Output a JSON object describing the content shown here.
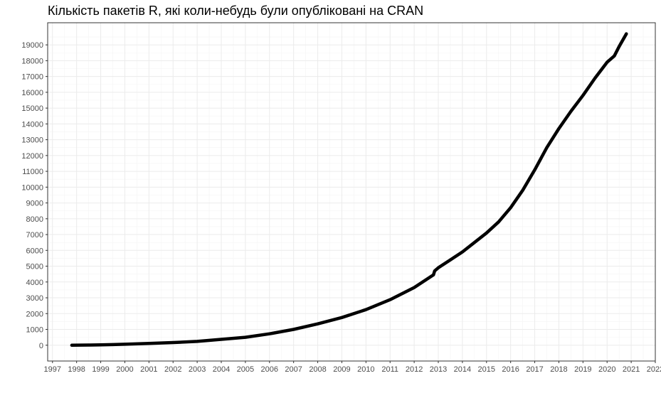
{
  "chart_data": {
    "type": "line",
    "title": "Кількість пакетів R, які коли-небудь були опубліковані на CRAN",
    "xlabel": "",
    "ylabel": "",
    "xlim": [
      1996.8,
      2022.0
    ],
    "ylim": [
      -1000,
      20400
    ],
    "grid": true,
    "legend": "none",
    "x_ticks": [
      "1997",
      "1998",
      "1999",
      "2000",
      "2001",
      "2002",
      "2003",
      "2004",
      "2005",
      "2006",
      "2007",
      "2008",
      "2009",
      "2010",
      "2011",
      "2012",
      "2013",
      "2014",
      "2015",
      "2016",
      "2017",
      "2018",
      "2019",
      "2020",
      "2021",
      "2022"
    ],
    "y_ticks": [
      0,
      1000,
      2000,
      3000,
      4000,
      5000,
      6000,
      7000,
      8000,
      9000,
      10000,
      11000,
      12000,
      13000,
      14000,
      15000,
      16000,
      17000,
      18000,
      19000
    ],
    "line_color": "#000000",
    "series": [
      {
        "x": [
          1997.8,
          1998.5,
          1999.0,
          1999.5,
          2000.0,
          2001.0,
          2002.0,
          2003.0,
          2004.0,
          2005.0,
          2006.0,
          2007.0,
          2008.0,
          2009.0,
          2010.0,
          2011.0,
          2012.0,
          2012.8,
          2012.85,
          2013.0,
          2014.0,
          2015.0,
          2015.5,
          2016.0,
          2016.5,
          2017.0,
          2017.5,
          2018.0,
          2018.5,
          2019.0,
          2019.5,
          2020.0,
          2020.3,
          2020.5,
          2020.8
        ],
        "y": [
          0,
          10,
          20,
          40,
          60,
          110,
          170,
          240,
          370,
          500,
          720,
          1000,
          1350,
          1750,
          2250,
          2880,
          3650,
          4450,
          4700,
          4900,
          5900,
          7100,
          7800,
          8700,
          9800,
          11100,
          12500,
          13700,
          14800,
          15800,
          16900,
          17900,
          18300,
          18900,
          19700
        ]
      }
    ]
  }
}
